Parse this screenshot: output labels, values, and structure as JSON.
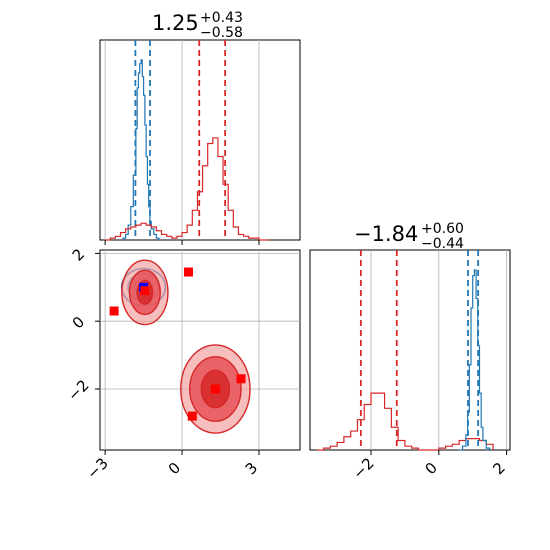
{
  "colors": {
    "blue": "#1f77b4",
    "red": "#d62728",
    "marker_blue": "#0000ff",
    "marker_red": "#ff0000",
    "fill_light_red": "#f4a3a3",
    "fill_mid_red": "#e8535a",
    "fill_dark_red": "#d62728",
    "grid": "#b0b0b0"
  },
  "chart_data": [
    {
      "type": "corner",
      "panels": [
        {
          "id": "top-left",
          "kind": "histogram",
          "title_value": "1.25",
          "title_sup": "+0.43",
          "title_sub": "−0.58",
          "xlim": [
            -3.2,
            4.6
          ],
          "xticks": [
            -3,
            0,
            3
          ],
          "tick_labels_shown": false,
          "grid": true,
          "series": [
            {
              "name": "",
              "color": "blue",
              "bins": [
                -2.4,
                -2.2,
                -2.0,
                -1.8,
                -1.6,
                -1.4,
                -1.2,
                -1.0,
                -0.8,
                -0.6
              ],
              "bin_width": 0.1,
              "counts_x": [
                -2.3,
                -2.2,
                -2.1,
                -2.0,
                -1.9,
                -1.8,
                -1.75,
                -1.7,
                -1.65,
                -1.6,
                -1.55,
                -1.5,
                -1.45,
                -1.4,
                -1.35,
                -1.3,
                -1.25,
                -1.2,
                -1.1,
                -1.0,
                -0.9
              ],
              "counts_y": [
                0.01,
                0.03,
                0.08,
                0.18,
                0.35,
                0.6,
                0.82,
                0.9,
                0.95,
                0.97,
                0.88,
                0.78,
                0.62,
                0.45,
                0.3,
                0.18,
                0.1,
                0.06,
                0.03,
                0.01,
                0.0
              ],
              "quantiles": [
                -1.82,
                -1.25
              ]
            },
            {
              "name": "",
              "color": "red",
              "counts_x": [
                -3.0,
                -2.8,
                -2.6,
                -2.4,
                -2.2,
                -2.0,
                -1.8,
                -1.6,
                -1.4,
                -1.2,
                -1.0,
                -0.8,
                -0.6,
                -0.4,
                -0.2,
                0.0,
                0.2,
                0.4,
                0.6,
                0.8,
                1.0,
                1.2,
                1.4,
                1.6,
                1.8,
                2.0,
                2.2,
                2.4,
                2.6,
                2.8,
                3.0,
                3.2,
                3.4
              ],
              "counts_y": [
                0.0,
                0.01,
                0.02,
                0.04,
                0.06,
                0.07,
                0.08,
                0.09,
                0.08,
                0.07,
                0.05,
                0.03,
                0.02,
                0.01,
                0.02,
                0.04,
                0.08,
                0.16,
                0.26,
                0.4,
                0.52,
                0.55,
                0.45,
                0.3,
                0.16,
                0.07,
                0.03,
                0.02,
                0.01,
                0.01,
                0.0,
                0.0,
                0.0
              ],
              "quantiles": [
                0.67,
                1.68
              ]
            }
          ]
        },
        {
          "id": "bottom-left",
          "kind": "2d-contour",
          "xlim": [
            -3.2,
            4.6
          ],
          "ylim": [
            -3.8,
            2.1
          ],
          "xticks": [
            -3,
            0,
            3
          ],
          "yticks": [
            -2,
            0,
            2
          ],
          "xtick_labels": [
            "−3",
            "0",
            "3"
          ],
          "ytick_labels": [
            "−2",
            "0",
            "2"
          ],
          "grid": true,
          "clusters": [
            {
              "color": "blue",
              "center": [
                -1.5,
                1.0
              ],
              "sizes": [
                [
                  0.85,
                  0.55
                ],
                [
                  0.6,
                  0.4
                ],
                [
                  0.35,
                  0.25
                ]
              ]
            },
            {
              "color": "red",
              "center": [
                -1.45,
                0.85
              ],
              "sizes": [
                [
                  0.9,
                  0.95
                ],
                [
                  0.6,
                  0.65
                ],
                [
                  0.3,
                  0.35
                ]
              ]
            },
            {
              "color": "red",
              "center": [
                1.3,
                -2.0
              ],
              "sizes": [
                [
                  1.35,
                  1.3
                ],
                [
                  1.0,
                  0.95
                ],
                [
                  0.55,
                  0.55
                ]
              ]
            }
          ],
          "markers": [
            {
              "x": -1.5,
              "y": 1.0,
              "color": "marker_blue"
            },
            {
              "x": -1.45,
              "y": 0.9,
              "color": "marker_red"
            },
            {
              "x": 0.25,
              "y": 1.45,
              "color": "marker_red"
            },
            {
              "x": -2.65,
              "y": 0.3,
              "color": "marker_red"
            },
            {
              "x": 1.3,
              "y": -2.0,
              "color": "marker_red"
            },
            {
              "x": 2.3,
              "y": -1.7,
              "color": "marker_red"
            },
            {
              "x": 0.4,
              "y": -2.8,
              "color": "marker_red"
            }
          ]
        },
        {
          "id": "bottom-right",
          "kind": "histogram",
          "title_value": "−1.84",
          "title_sup": "+0.60",
          "title_sub": "−0.44",
          "xlim": [
            -3.8,
            2.1
          ],
          "xticks": [
            -2,
            0,
            2
          ],
          "xtick_labels": [
            "−2",
            "0",
            "2"
          ],
          "grid": true,
          "series": [
            {
              "name": "",
              "color": "red",
              "counts_x": [
                -3.6,
                -3.4,
                -3.2,
                -3.0,
                -2.8,
                -2.6,
                -2.4,
                -2.2,
                -2.0,
                -1.8,
                -1.6,
                -1.4,
                -1.2,
                -1.0,
                -0.8,
                -0.6,
                -0.4,
                -0.2,
                0.0,
                0.2,
                0.4,
                0.6,
                0.8,
                1.0,
                1.2,
                1.4,
                1.6
              ],
              "counts_y": [
                0.0,
                0.01,
                0.02,
                0.04,
                0.07,
                0.1,
                0.16,
                0.24,
                0.3,
                0.3,
                0.22,
                0.12,
                0.05,
                0.02,
                0.01,
                0.0,
                0.0,
                0.0,
                0.01,
                0.02,
                0.03,
                0.05,
                0.06,
                0.06,
                0.05,
                0.03,
                0.01
              ],
              "quantiles": [
                -2.3,
                -1.24
              ]
            },
            {
              "name": "",
              "color": "blue",
              "counts_x": [
                0.6,
                0.7,
                0.8,
                0.85,
                0.9,
                0.95,
                1.0,
                1.05,
                1.1,
                1.15,
                1.2,
                1.25,
                1.3,
                1.4,
                1.5
              ],
              "counts_y": [
                0.0,
                0.02,
                0.08,
                0.2,
                0.45,
                0.75,
                0.92,
                0.95,
                0.8,
                0.55,
                0.3,
                0.12,
                0.05,
                0.01,
                0.0
              ],
              "quantiles": [
                0.86,
                1.16
              ]
            }
          ]
        }
      ]
    }
  ]
}
